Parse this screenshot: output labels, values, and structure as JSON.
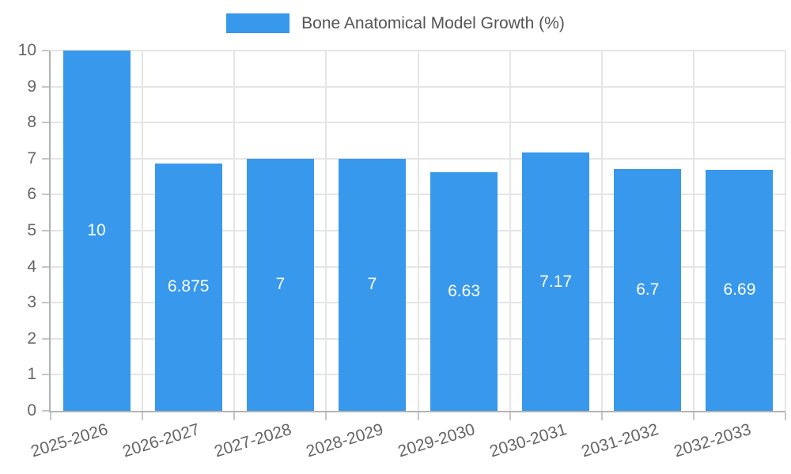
{
  "chart_data": {
    "type": "bar",
    "categories": [
      "2025-2026",
      "2026-2027",
      "2027-2028",
      "2028-2029",
      "2029-2030",
      "2030-2031",
      "2031-2032",
      "2032-2033"
    ],
    "series": [
      {
        "name": "Bone Anatomical Model Growth (%)",
        "values": [
          10,
          6.875,
          7,
          7,
          6.63,
          7.17,
          6.7,
          6.69
        ],
        "labels": [
          "10",
          "6.875",
          "7",
          "7",
          "6.63",
          "7.17",
          "6.7",
          "6.69"
        ],
        "color": "#3898ec"
      }
    ],
    "title": "",
    "xlabel": "",
    "ylabel": "",
    "ylim": [
      0,
      10
    ],
    "yticks": [
      "0",
      "1",
      "2",
      "3",
      "4",
      "5",
      "6",
      "7",
      "8",
      "9",
      "10"
    ],
    "grid": true,
    "legend_position": "top",
    "x_tick_rotation_deg": -17,
    "colors": {
      "bar": "#3898ec",
      "grid": "#e5e5e5",
      "axis": "#b3b3b3",
      "tick": "#c6c6c6",
      "axis_label_text": "#666666",
      "legend_text": "#555555",
      "data_label_text": "#ffffff",
      "background": "#ffffff"
    }
  }
}
